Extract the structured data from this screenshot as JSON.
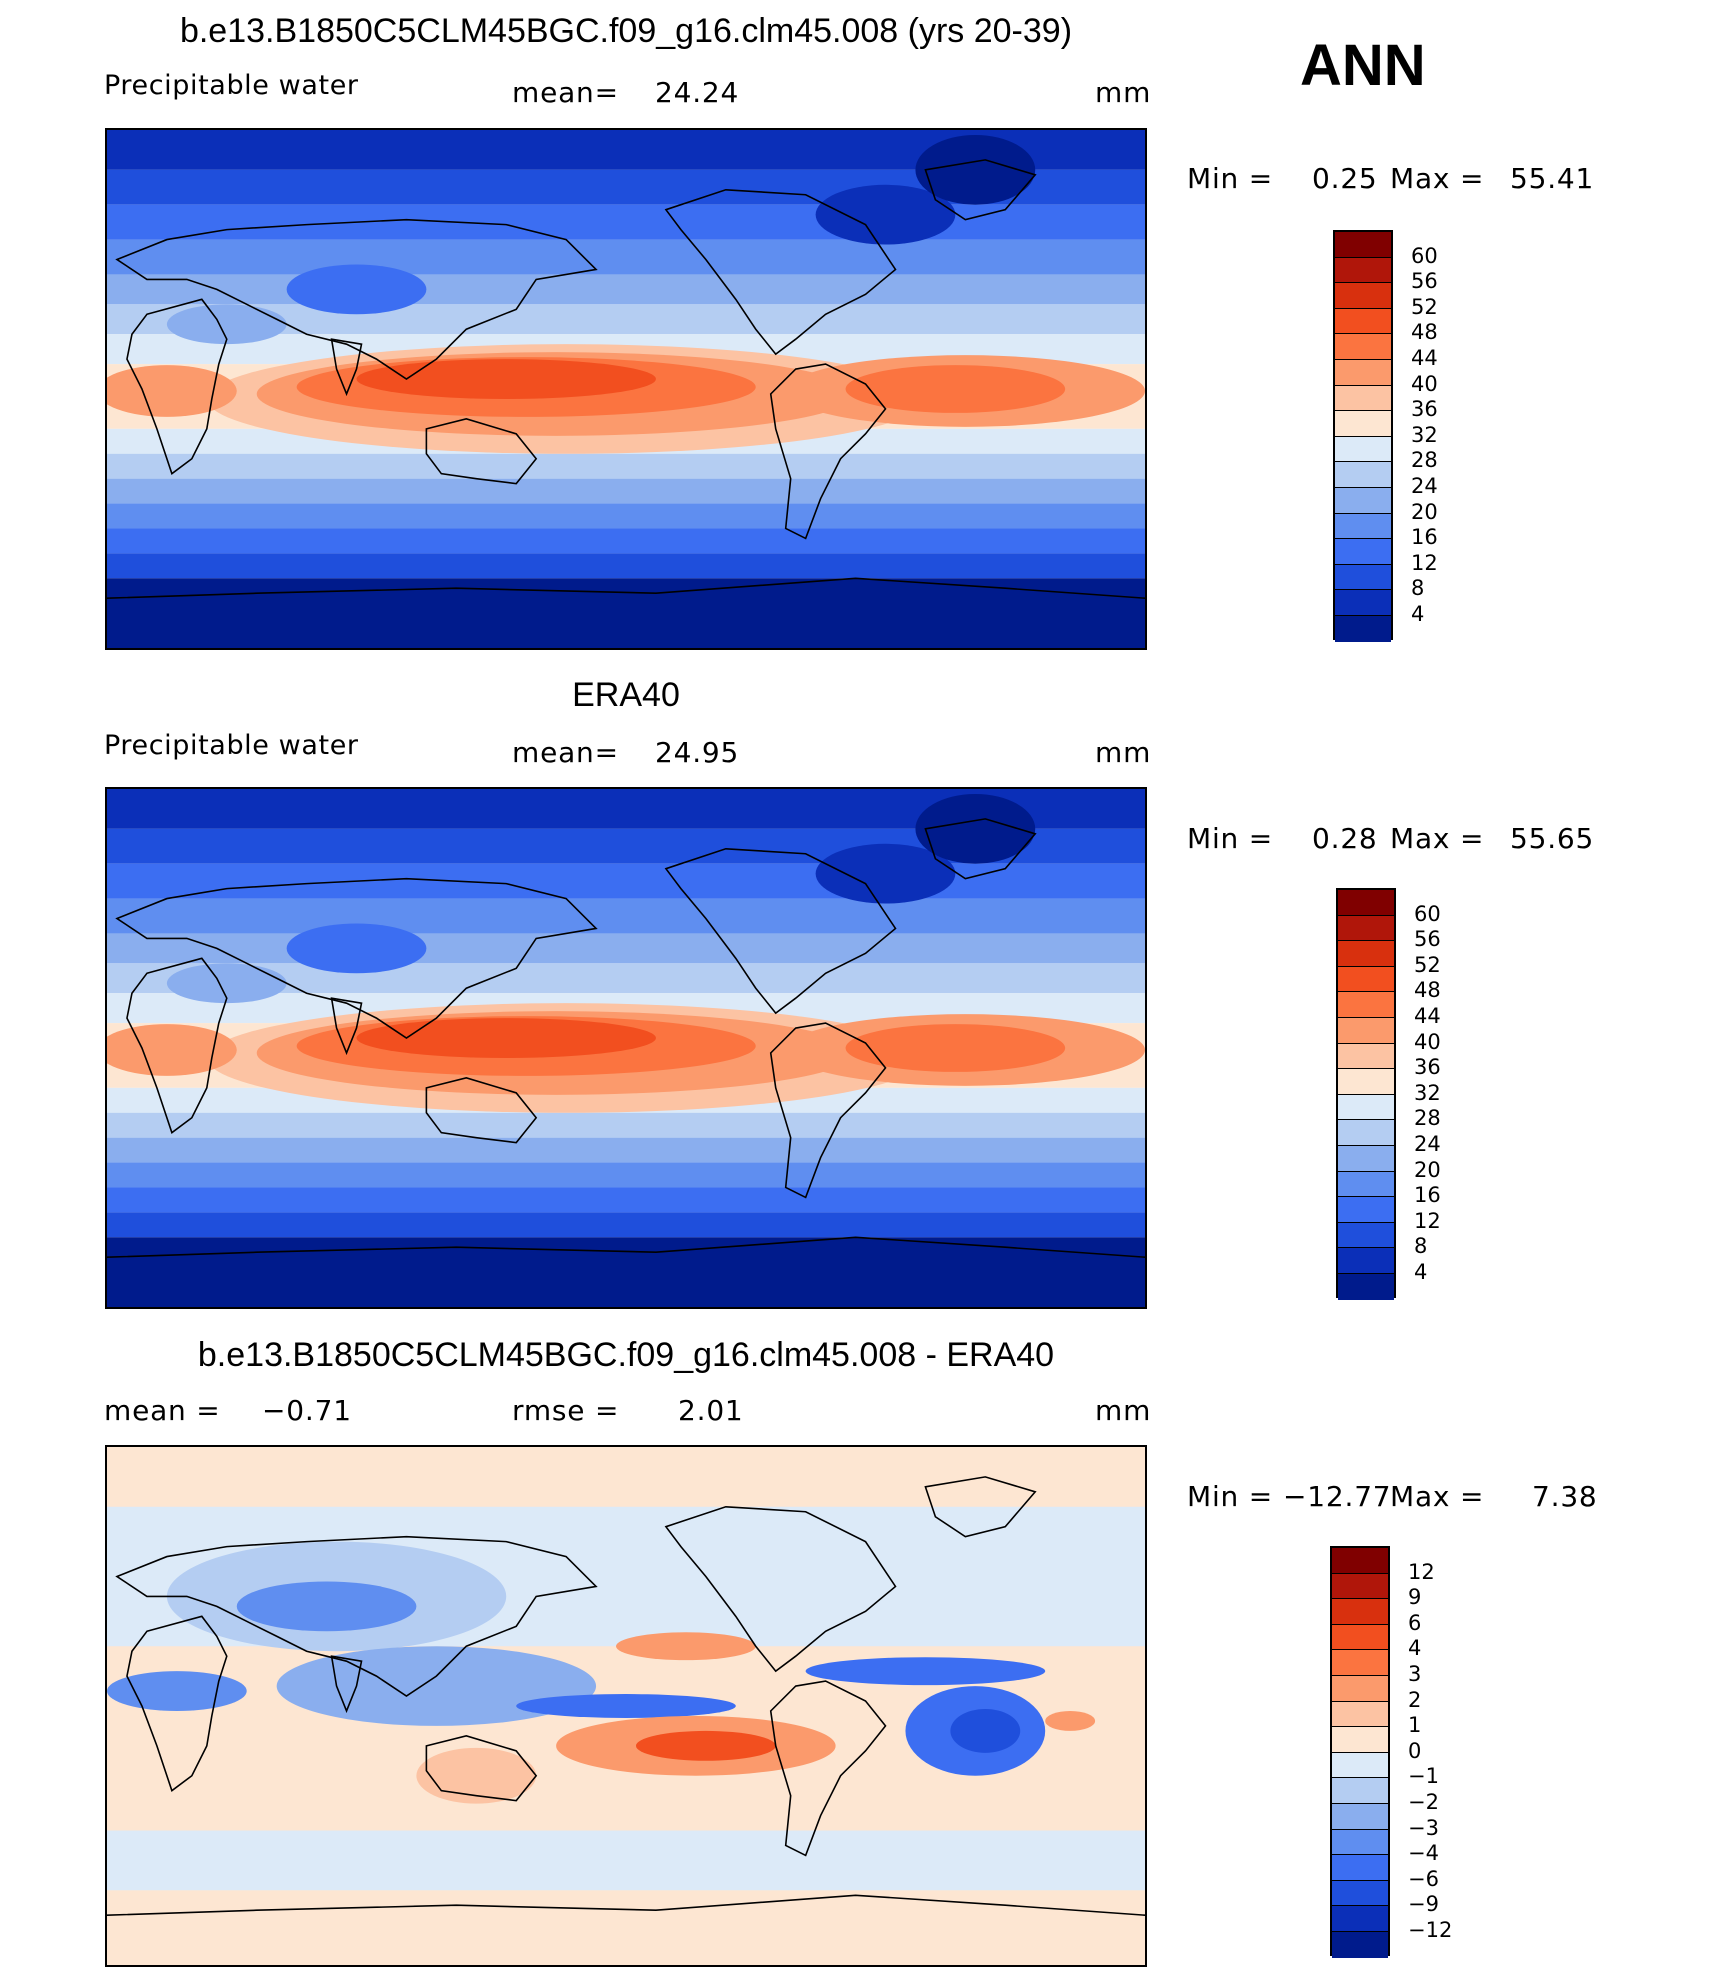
{
  "figure": {
    "season": "ANN",
    "units": "mm",
    "panels": [
      {
        "id": "model",
        "title": "b.e13.B1850C5CLM45BGC.f09_g16.clm45.008 (yrs 20-39)",
        "left_label": "Precipitable  water",
        "center_label": "mean=",
        "center_value": "24.24",
        "right_label": "mm",
        "min_label": "Min =",
        "min_value": "0.25",
        "max_label": "Max =",
        "max_value": "55.41",
        "colorbar": {
          "labels": [
            "60",
            "56",
            "52",
            "48",
            "44",
            "40",
            "36",
            "32",
            "28",
            "24",
            "20",
            "16",
            "12",
            "8",
            "4"
          ],
          "colors": [
            "#800000",
            "#b0160a",
            "#d8300e",
            "#f24f1f",
            "#fb7440",
            "#fb9a6c",
            "#fcc3a3",
            "#fde6d2",
            "#dceaf8",
            "#b4cdf2",
            "#8aaeee",
            "#5f8ef0",
            "#3c6ef2",
            "#1f4fdc",
            "#0b2fb8",
            "#001b8c"
          ]
        }
      },
      {
        "id": "obs",
        "title": "ERA40",
        "left_label": "Precipitable  water",
        "center_label": "mean=",
        "center_value": "24.95",
        "right_label": "mm",
        "min_label": "Min =",
        "min_value": "0.28",
        "max_label": "Max =",
        "max_value": "55.65",
        "colorbar": {
          "labels": [
            "60",
            "56",
            "52",
            "48",
            "44",
            "40",
            "36",
            "32",
            "28",
            "24",
            "20",
            "16",
            "12",
            "8",
            "4"
          ],
          "colors": [
            "#800000",
            "#b0160a",
            "#d8300e",
            "#f24f1f",
            "#fb7440",
            "#fb9a6c",
            "#fcc3a3",
            "#fde6d2",
            "#dceaf8",
            "#b4cdf2",
            "#8aaeee",
            "#5f8ef0",
            "#3c6ef2",
            "#1f4fdc",
            "#0b2fb8",
            "#001b8c"
          ]
        }
      },
      {
        "id": "diff",
        "title": "b.e13.B1850C5CLM45BGC.f09_g16.clm45.008 - ERA40",
        "left_label": "mean =",
        "left_value": "−0.71",
        "center_label": "rmse =",
        "center_value": "2.01",
        "right_label": "mm",
        "min_label": "Min =",
        "min_value": "−12.77",
        "max_label": "Max =",
        "max_value": "7.38",
        "colorbar": {
          "labels": [
            "12",
            "9",
            "6",
            "4",
            "3",
            "2",
            "1",
            "0",
            "−1",
            "−2",
            "−3",
            "−4",
            "−6",
            "−9",
            "−12"
          ],
          "colors": [
            "#800000",
            "#b0160a",
            "#d8300e",
            "#f24f1f",
            "#fb7440",
            "#fb9a6c",
            "#fcc3a3",
            "#fde6d2",
            "#dceaf8",
            "#b4cdf2",
            "#8aaeee",
            "#5f8ef0",
            "#3c6ef2",
            "#1f4fdc",
            "#0b2fb8",
            "#001b8c"
          ]
        }
      }
    ]
  }
}
